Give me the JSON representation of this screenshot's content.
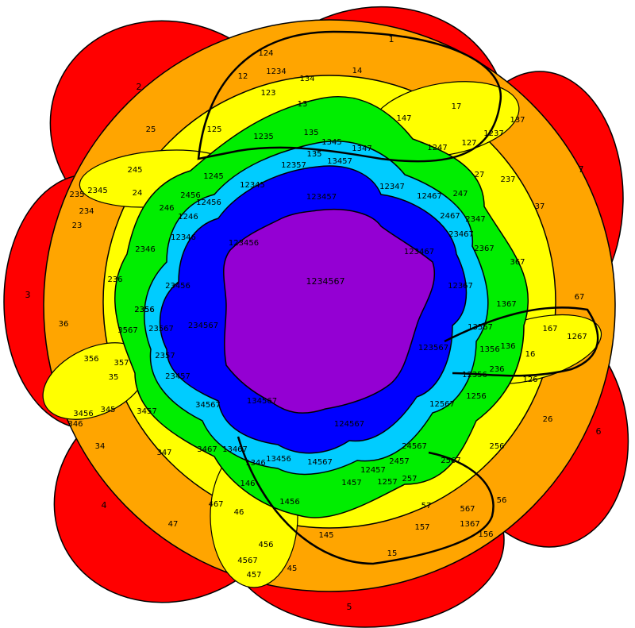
{
  "colors": {
    "depth1": "#ff0000",
    "depth2": "#ffa500",
    "depth3": "#ffff00",
    "depth4": "#00ee00",
    "depth5": "#00ccff",
    "depth6": "#0000ff",
    "depth7": "#9400d3",
    "outline": "#000000"
  },
  "regions": {
    "center": "1234567",
    "depth6": [
      "123457",
      "123467",
      "123567",
      "124567",
      "134567",
      "234567",
      "123456"
    ],
    "depth5": [
      "12345",
      "12456",
      "12346",
      "23456",
      "23567",
      "23457",
      "34567",
      "13467",
      "13456",
      "14567",
      "12457",
      "24567",
      "12567",
      "12356",
      "13567",
      "12367",
      "23467",
      "12467",
      "12347",
      "13457",
      "12357"
    ],
    "depth4": [
      "1234",
      "1235",
      "1345",
      "1347",
      "1247",
      "1237",
      "2467",
      "2347",
      "2367",
      "1367",
      "1267",
      "1356",
      "1256",
      "2567",
      "2457",
      "1257",
      "1367",
      "2345",
      "1245",
      "2456",
      "1246",
      "2346",
      "2356",
      "2357",
      "3457",
      "3456",
      "3467",
      "1346",
      "1456",
      "1457",
      "4567",
      "135",
      "2356"
    ],
    "depth3": [
      "124",
      "134",
      "123",
      "125",
      "135",
      "147",
      "127",
      "137",
      "247",
      "237",
      "367",
      "167",
      "136",
      "236",
      "126",
      "256",
      "567",
      "156",
      "257",
      "157",
      "145",
      "146",
      "456",
      "457",
      "467",
      "347",
      "345",
      "357",
      "3567",
      "356",
      "236",
      "346",
      "234",
      "245",
      "246",
      "235",
      "13"
    ],
    "depth2": [
      "12",
      "14",
      "17",
      "27",
      "37",
      "67",
      "16",
      "26",
      "56",
      "57",
      "15",
      "45",
      "46",
      "47",
      "34",
      "35",
      "36",
      "23",
      "24",
      "25"
    ],
    "depth1": [
      "1",
      "2",
      "3",
      "4",
      "5",
      "6",
      "7"
    ]
  }
}
